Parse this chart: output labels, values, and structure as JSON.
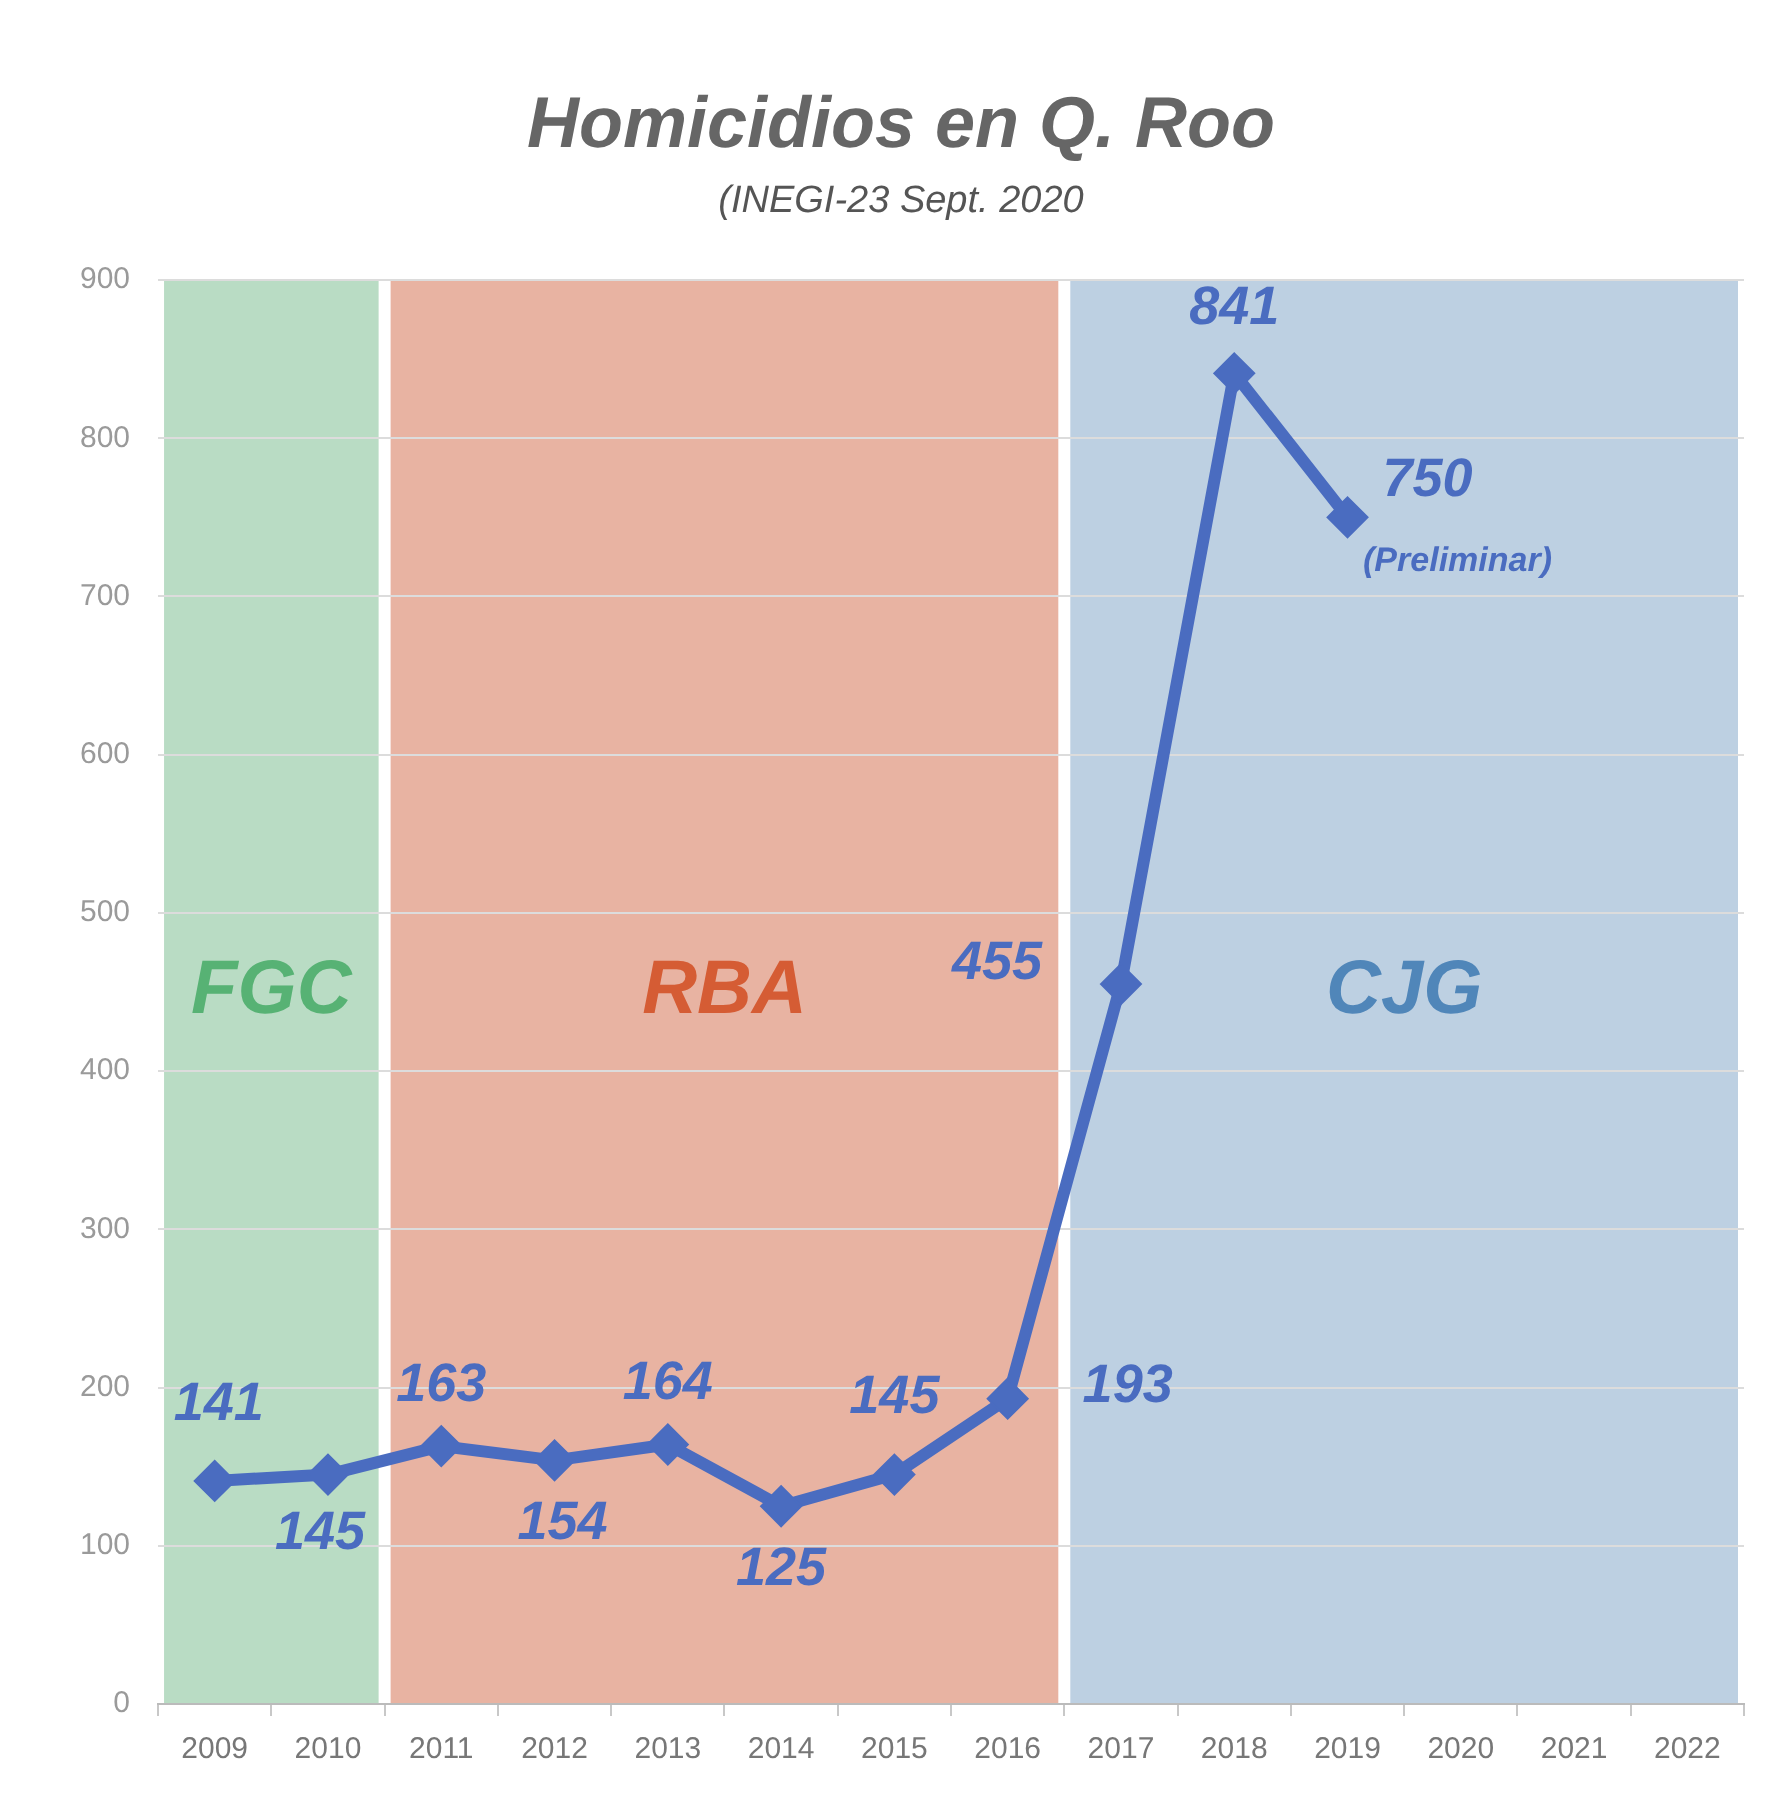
{
  "chart_data": {
    "type": "line",
    "title": "Homicidios en Q. Roo",
    "subtitle": "(INEGI-23 Sept. 2020",
    "categories": [
      "2009",
      "2010",
      "2011",
      "2012",
      "2013",
      "2014",
      "2015",
      "2016",
      "2017",
      "2018",
      "2019",
      "2020",
      "2021",
      "2022"
    ],
    "series": [
      {
        "color": "#4a6cc0",
        "values": [
          141,
          145,
          163,
          154,
          164,
          125,
          145,
          193,
          455,
          841,
          750,
          null,
          null,
          null
        ]
      }
    ],
    "ylim": [
      0,
      900
    ],
    "yticks": [
      0,
      100,
      200,
      300,
      400,
      500,
      600,
      700,
      800,
      900
    ],
    "grid": "y",
    "marker": "diamond",
    "line_style": "solid",
    "data_labels": true,
    "bands": [
      {
        "axis": "x",
        "from": "2009",
        "to": "2010",
        "label": "FGC",
        "color": "#b9dcc4"
      },
      {
        "axis": "x",
        "from": "2011",
        "to": "2016",
        "label": "RBA",
        "color": "#e8b3a2"
      },
      {
        "axis": "x",
        "from": "2017",
        "to": "2022",
        "label": "CJG",
        "color": "#bdd0e2"
      }
    ],
    "annotations": [
      {
        "text": "(Preliminar)",
        "x": "2019",
        "y": 750
      }
    ]
  }
}
